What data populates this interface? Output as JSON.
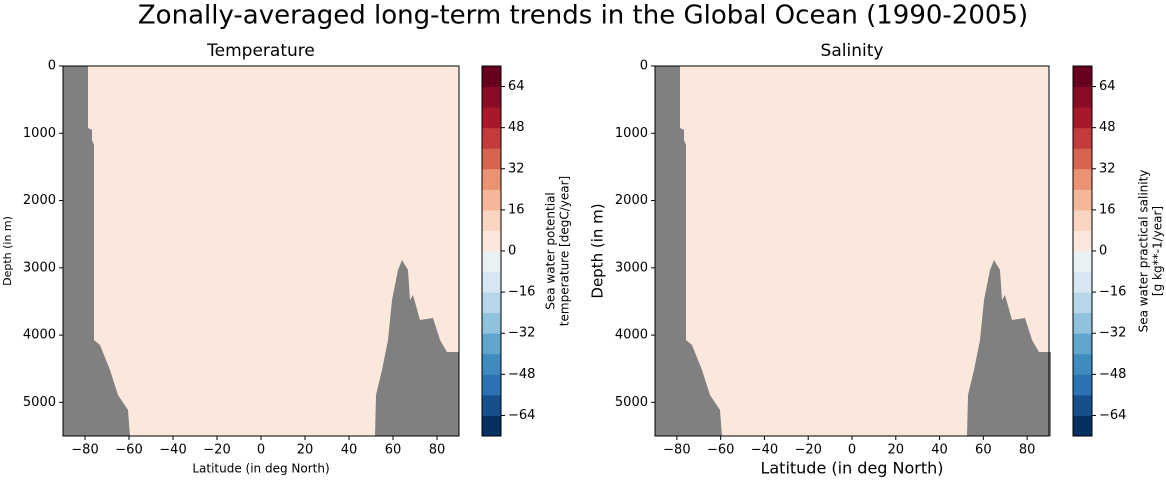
{
  "title": "Zonally-averaged long-term trends in the Global Ocean (1990-2005)",
  "chart_data": [
    {
      "type": "contour",
      "title": "Temperature",
      "xlabel": "Latitude (in deg North)",
      "ylabel": "Depth (in m)",
      "colorbar_label": [
        "Sea water potential",
        "temperature [degC/year]"
      ],
      "xlim": [
        -90,
        90
      ],
      "xticks": [
        {
          "value": -80,
          "label": "−80"
        },
        {
          "value": -60,
          "label": "−60"
        },
        {
          "value": -40,
          "label": "−40"
        },
        {
          "value": -20,
          "label": "−20"
        },
        0,
        20,
        40,
        60,
        80
      ],
      "ylim": [
        5500,
        0
      ],
      "yticks": [
        0,
        1000,
        2000,
        3000,
        4000,
        5000
      ],
      "levels": [
        -72,
        -64,
        -56,
        -48,
        -40,
        -32,
        -24,
        -16,
        -8,
        0,
        8,
        16,
        24,
        32,
        40,
        48,
        56,
        64,
        72
      ],
      "colors": [
        "#053061",
        "#15508d",
        "#2b73b3",
        "#3e8bc0",
        "#5fa5cd",
        "#8ec2dd",
        "#b7d7e8",
        "#d6e7f1",
        "#eaf1f5",
        "#fbe8dd",
        "#f9d4c0",
        "#f6b698",
        "#eb9272",
        "#d86450",
        "#c33b3b",
        "#a7182b",
        "#8a0b25",
        "#67001f"
      ],
      "cticks": [
        {
          "value": -64,
          "label": "−64"
        },
        {
          "value": -48,
          "label": "−48"
        },
        {
          "value": -32,
          "label": "−32"
        },
        {
          "value": -16,
          "label": "−16"
        },
        0,
        16,
        32,
        48,
        64
      ]
    },
    {
      "type": "contour",
      "title": "Salinity",
      "xlabel": "Latitude (in deg North)",
      "ylabel": "Depth (in m)",
      "colorbar_label": [
        "Sea water practical salinity",
        "[g kg**-1/year]"
      ],
      "xlim": [
        -90,
        90
      ],
      "xticks": [
        {
          "value": -80,
          "label": "−80"
        },
        {
          "value": -60,
          "label": "−60"
        },
        {
          "value": -40,
          "label": "−40"
        },
        {
          "value": -20,
          "label": "−20"
        },
        0,
        20,
        40,
        60,
        80
      ],
      "ylim": [
        5500,
        0
      ],
      "yticks": [
        0,
        1000,
        2000,
        3000,
        4000,
        5000
      ],
      "levels": [
        -72,
        -64,
        -56,
        -48,
        -40,
        -32,
        -24,
        -16,
        -8,
        0,
        8,
        16,
        24,
        32,
        40,
        48,
        56,
        64,
        72
      ],
      "colors": [
        "#053061",
        "#15508d",
        "#2b73b3",
        "#3e8bc0",
        "#5fa5cd",
        "#8ec2dd",
        "#b7d7e8",
        "#d6e7f1",
        "#eaf1f5",
        "#fbe8dd",
        "#f9d4c0",
        "#f6b698",
        "#eb9272",
        "#d86450",
        "#c33b3b",
        "#a7182b",
        "#8a0b25",
        "#67001f"
      ],
      "cticks": [
        {
          "value": -64,
          "label": "−64"
        },
        {
          "value": -48,
          "label": "−48"
        },
        {
          "value": -32,
          "label": "−32"
        },
        {
          "value": -16,
          "label": "−16"
        },
        0,
        16,
        32,
        48,
        64
      ]
    }
  ]
}
